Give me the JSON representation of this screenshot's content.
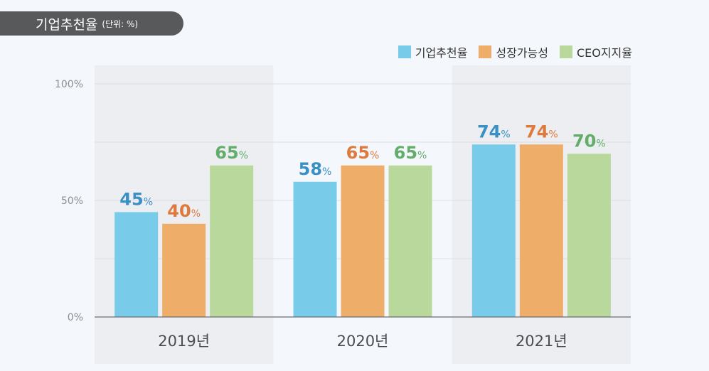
{
  "header": {
    "title": "기업추천율",
    "unit": "(단위: %)"
  },
  "colors": {
    "series_1": "#78ccea",
    "series_2": "#efad6a",
    "series_3": "#b8d99b",
    "label_1": "#3a8fc4",
    "label_2": "#de7a3e",
    "label_3": "#63ad6a"
  },
  "chart_data": {
    "type": "bar",
    "categories": [
      "2019년",
      "2020년",
      "2021년"
    ],
    "series": [
      {
        "name": "기업추천율",
        "values": [
          45,
          58,
          74
        ]
      },
      {
        "name": "성장가능성",
        "values": [
          40,
          65,
          74
        ]
      },
      {
        "name": "CEO지지율",
        "values": [
          65,
          65,
          70
        ]
      }
    ],
    "ylim": [
      0,
      100
    ],
    "yticks": [
      "0%",
      "50%",
      "100%"
    ],
    "value_suffix": "%",
    "legend": "top-right",
    "grid": true
  }
}
